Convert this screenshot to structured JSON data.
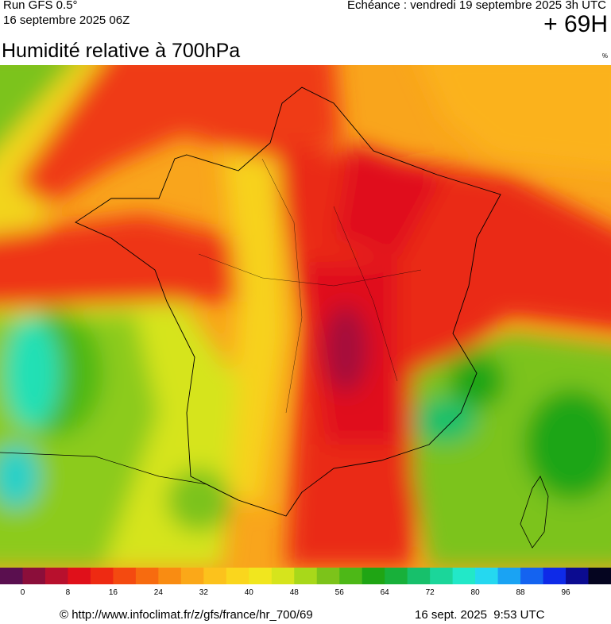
{
  "header": {
    "run": "Run GFS 0.5°",
    "date": "16 septembre 2025 06Z",
    "forecast": "Echéance : vendredi 19 septembre 2025 3h UTC",
    "lead": "+ 69H"
  },
  "title": "Humidité relative à 700hPa",
  "unit": "%",
  "scale": {
    "labels": [
      0,
      8,
      16,
      24,
      32,
      40,
      48,
      56,
      64,
      72,
      80,
      88,
      96
    ],
    "colors": [
      "#5a0f4f",
      "#8b0e3a",
      "#b8102d",
      "#e0101a",
      "#ee2a12",
      "#f44a10",
      "#f76b0f",
      "#f98c12",
      "#fba818",
      "#fcc21c",
      "#fad61d",
      "#f1e61e",
      "#d6e41c",
      "#a8d81a",
      "#7cc31a",
      "#4db817",
      "#1fa514",
      "#18b03a",
      "#17c06b",
      "#1bd69a",
      "#22e8c8",
      "#25d8f0",
      "#1aa3f3",
      "#1463f0",
      "#0e2ae8",
      "#0b0b90",
      "#050520"
    ]
  },
  "footer": {
    "source": "© http://www.infoclimat.fr/z/gfs/france/hr_700/69",
    "timestamp": "16 sept. 2025  9:53 UTC"
  }
}
